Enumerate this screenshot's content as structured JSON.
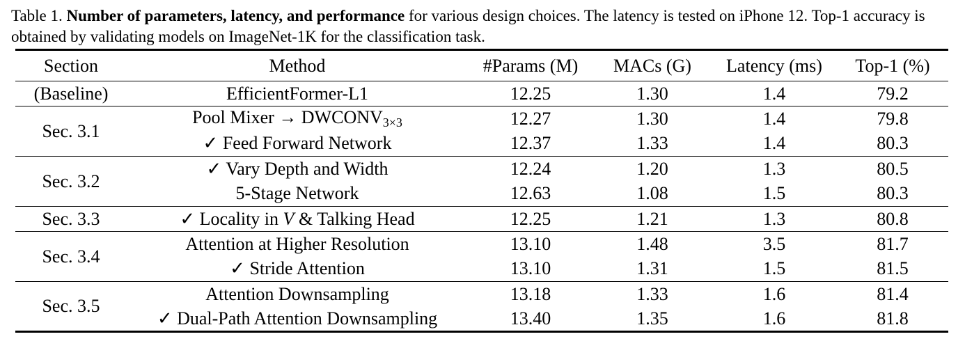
{
  "caption": {
    "prefix": "Table 1. ",
    "bold": "Number of parameters, latency, and performance",
    "rest": " for various design choices. The latency is tested on iPhone 12. Top-1 accuracy is obtained by validating models on ImageNet-1K for the classification task."
  },
  "table": {
    "headers": [
      "Section",
      "Method",
      "#Params (M)",
      "MACs (G)",
      "Latency (ms)",
      "Top-1 (%)"
    ],
    "groups": [
      {
        "section": "(Baseline)",
        "rows": [
          {
            "method": "EfficientFormer-L1",
            "params": "12.25",
            "macs": "1.30",
            "latency": "1.4",
            "top1": "79.2"
          }
        ]
      },
      {
        "section": "Sec. 3.1",
        "rows": [
          {
            "method_pre": "Pool Mixer → DWCONV",
            "method_sub": "3×3",
            "params": "12.27",
            "macs": "1.30",
            "latency": "1.4",
            "top1": "79.8"
          },
          {
            "method": "✓ Feed Forward Network",
            "params": "12.37",
            "macs": "1.33",
            "latency": "1.4",
            "top1": "80.3"
          }
        ]
      },
      {
        "section": "Sec. 3.2",
        "rows": [
          {
            "method": "✓ Vary Depth and Width",
            "params": "12.24",
            "macs": "1.20",
            "latency": "1.3",
            "top1": "80.5"
          },
          {
            "method": "5-Stage Network",
            "params": "12.63",
            "macs": "1.08",
            "latency": "1.5",
            "top1": "80.3"
          }
        ]
      },
      {
        "section": "Sec. 3.3",
        "rows": [
          {
            "method_pre": "✓ Locality in ",
            "method_ital": "V",
            "method_post": " & Talking Head",
            "params": "12.25",
            "macs": "1.21",
            "latency": "1.3",
            "top1": "80.8"
          }
        ]
      },
      {
        "section": "Sec. 3.4",
        "rows": [
          {
            "method": "Attention at Higher Resolution",
            "params": "13.10",
            "macs": "1.48",
            "latency": "3.5",
            "top1": "81.7"
          },
          {
            "method": "✓ Stride Attention",
            "params": "13.10",
            "macs": "1.31",
            "latency": "1.5",
            "top1": "81.5"
          }
        ]
      },
      {
        "section": "Sec. 3.5",
        "rows": [
          {
            "method": "Attention Downsampling",
            "params": "13.18",
            "macs": "1.33",
            "latency": "1.6",
            "top1": "81.4"
          },
          {
            "method": "✓ Dual-Path Attention Downsampling",
            "params": "13.40",
            "macs": "1.35",
            "latency": "1.6",
            "top1": "81.8"
          }
        ]
      }
    ]
  }
}
